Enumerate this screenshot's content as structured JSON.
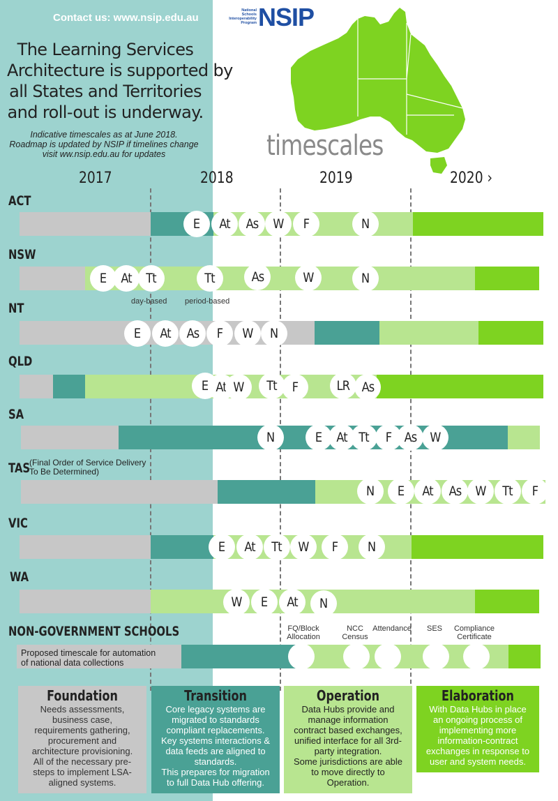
{
  "header": {
    "contact": "Contact us: www.nsip.edu.au",
    "headline": [
      "The Learning Services",
      "Architecture is supported by",
      "all States and Territories",
      "and roll-out is underway."
    ],
    "indicative": [
      "Indicative timescales as at June 2018.",
      "Roadmap is updated by NSIP if timelines change",
      "visit ww.nsip.edu.au for updates"
    ],
    "logo_small": [
      "National",
      "Schools",
      "Interoperability",
      "Program"
    ],
    "logo_big": "NSIP",
    "timescales_word": "timescales"
  },
  "years": [
    "2017",
    "2018",
    "2019",
    "2020 ›"
  ],
  "colors": {
    "gray": "#c7c7c7",
    "teal": "#4aa195",
    "light_green": "#b8e590",
    "green": "#7ed321",
    "left_panel": "#9dd3cf"
  },
  "rows": [
    {
      "label": "ACT",
      "circles": [
        "E",
        "At",
        "As",
        "W",
        "F",
        "N"
      ]
    },
    {
      "label": "NSW",
      "circles": [
        "E",
        "At",
        "Tt",
        "Tt",
        "As",
        "W",
        "N"
      ],
      "sublabels": [
        "day-based",
        "period-based"
      ]
    },
    {
      "label": "NT",
      "circles": [
        "E",
        "At",
        "As",
        "F",
        "W",
        "N"
      ]
    },
    {
      "label": "QLD",
      "circles": [
        "E",
        "At",
        "W",
        "Tt",
        "F",
        "LR",
        "As"
      ]
    },
    {
      "label": "SA",
      "circles": [
        "N",
        "E",
        "At",
        "Tt",
        "F",
        "As",
        "W"
      ]
    },
    {
      "label": "TAS",
      "note": [
        "(Final Order of Service Delivery",
        "To Be Determined)"
      ],
      "circles": [
        "N",
        "E",
        "At",
        "As",
        "W",
        "Tt",
        "F"
      ]
    },
    {
      "label": "VIC",
      "circles": [
        "E",
        "At",
        "Tt",
        "W",
        "F",
        "N"
      ]
    },
    {
      "label": "WA",
      "circles": [
        "W",
        "E",
        "At",
        "N"
      ]
    }
  ],
  "nongov": {
    "label": "NON-GOVERNMENT SCHOOLS",
    "proposed": [
      "Proposed timescale for automation",
      "of national data collections"
    ],
    "collections": [
      {
        "name": [
          "FQ/Block",
          "Allocation"
        ]
      },
      {
        "name": [
          "NCC",
          "Census"
        ]
      },
      {
        "name": [
          "Attendance"
        ]
      },
      {
        "name": [
          "SES"
        ]
      },
      {
        "name": [
          "Compliance",
          "Certificate"
        ]
      }
    ]
  },
  "stages": [
    {
      "title": "Foundation",
      "desc": [
        "Needs assessments,",
        "business case,",
        "requirements gathering,",
        "procurement and",
        "architecture provisioning.",
        "All of the necessary pre-",
        "steps to implement LSA-",
        "aligned systems."
      ],
      "bg": "#c7c7c7",
      "fg": "#333333"
    },
    {
      "title": "Transition",
      "desc": [
        "Core legacy systems are",
        "migrated to standards",
        "compliant replacements.",
        "Key systems interactions &",
        "data feeds are aligned to",
        "standards.",
        "This prepares for migration",
        "to full Data Hub offering."
      ],
      "bg": "#4aa195",
      "fg": "#ffffff"
    },
    {
      "title": "Operation",
      "desc": [
        "Data Hubs provide and",
        "manage information",
        "contract based exchanges,",
        "unified interface for all 3rd-",
        "party integration.",
        "Some jurisdictions are able",
        "to move directly to",
        "Operation."
      ],
      "bg": "#b8e590",
      "fg": "#222222"
    },
    {
      "title": "Elaboration",
      "desc": [
        "With Data Hubs in place",
        "an ongoing process of",
        "implementing more",
        "information-contract",
        "exchanges in response to",
        "user and system needs."
      ],
      "bg": "#7ed321",
      "fg": "#ffffff"
    }
  ]
}
